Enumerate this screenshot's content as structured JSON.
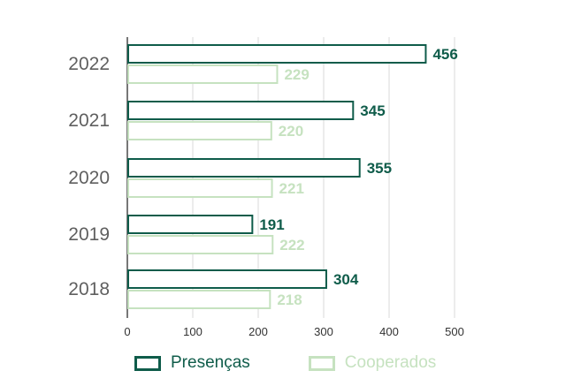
{
  "chart_data": {
    "type": "bar",
    "orientation": "horizontal",
    "categories": [
      "2022",
      "2021",
      "2020",
      "2019",
      "2018"
    ],
    "series": [
      {
        "name": "Presenças",
        "values": [
          456,
          345,
          355,
          191,
          304
        ],
        "color": "#0f5c4a"
      },
      {
        "name": "Cooperados",
        "values": [
          229,
          220,
          221,
          222,
          218
        ],
        "color": "#c6e2c0"
      }
    ],
    "xticks": [
      0,
      100,
      200,
      300,
      400,
      500
    ],
    "xlim": [
      0,
      500
    ],
    "grid": "vertical",
    "legend": "bottom",
    "title": "",
    "xlabel": "",
    "ylabel": ""
  }
}
